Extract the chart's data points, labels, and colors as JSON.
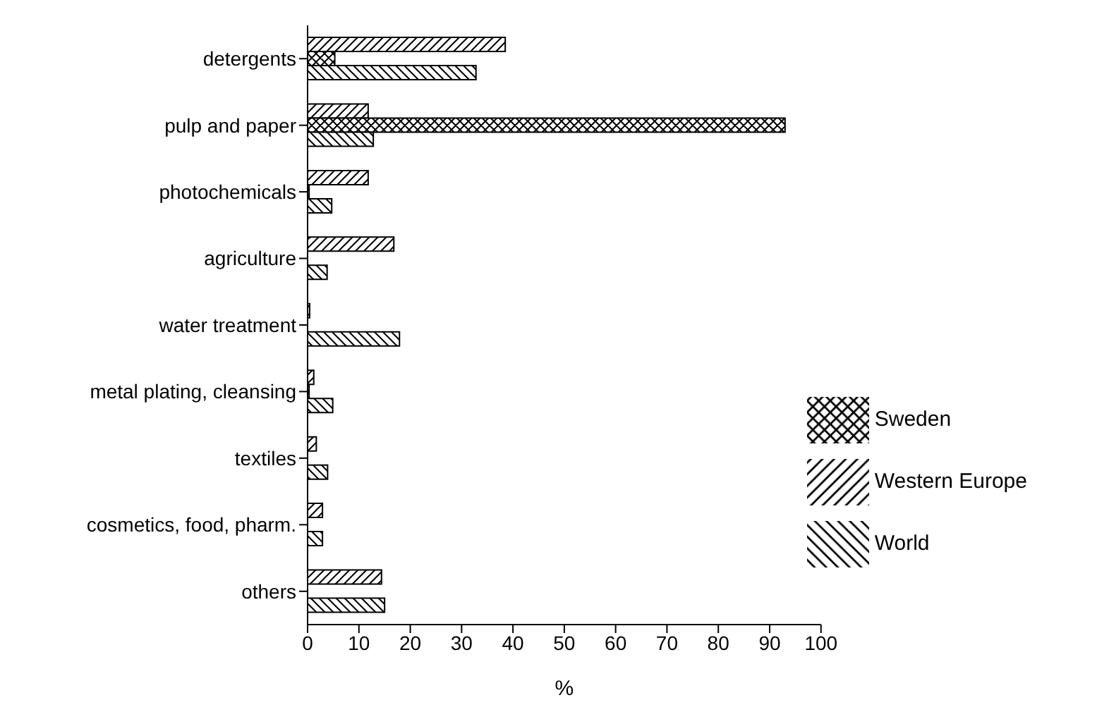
{
  "chart_data": {
    "type": "bar",
    "orientation": "horizontal",
    "xlabel": "%",
    "categories": [
      "detergents",
      "pulp and paper",
      "photochemicals",
      "agriculture",
      "water treatment",
      "metal plating, cleansing",
      "textiles",
      "cosmetics, food, pharm.",
      "others"
    ],
    "series": [
      {
        "name": "Western Europe",
        "color": "#000000",
        "values": [
          38.5,
          11.8,
          11.8,
          16.8,
          0.4,
          1.2,
          1.7,
          2.9,
          14.4
        ]
      },
      {
        "name": "Sweden",
        "color": "#000000",
        "values": [
          5.3,
          93,
          0.3,
          null,
          null,
          0.3,
          null,
          null,
          null
        ]
      },
      {
        "name": "World",
        "color": "#000000",
        "values": [
          32.8,
          12.8,
          4.7,
          3.8,
          17.9,
          4.9,
          3.9,
          2.9,
          15
        ]
      }
    ],
    "xlim": [
      0,
      100
    ],
    "xticks": [
      0,
      10,
      20,
      30,
      40,
      50,
      60,
      70,
      80,
      90,
      100
    ],
    "grid": false,
    "legend": "bottom right"
  }
}
